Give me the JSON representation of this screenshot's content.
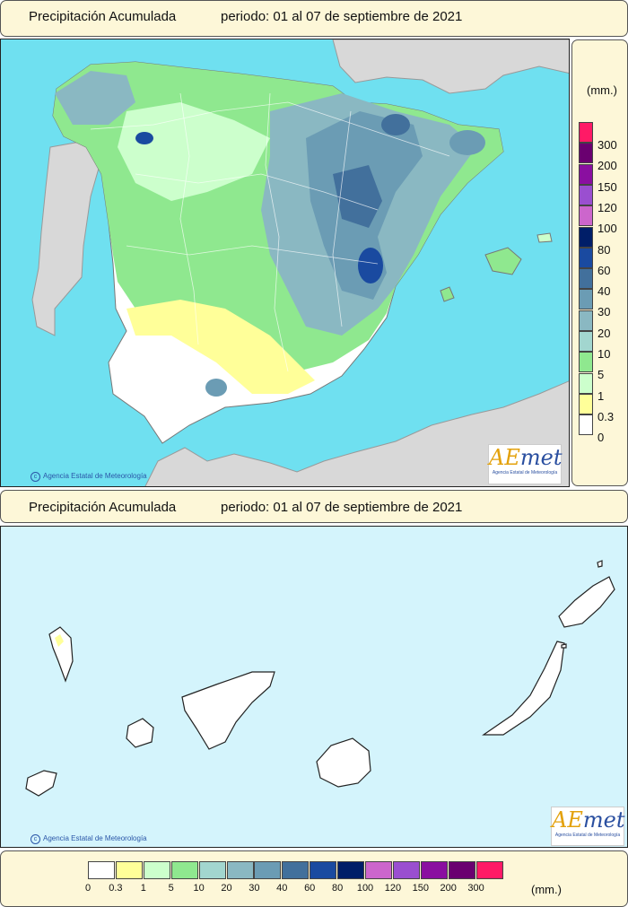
{
  "top_panel": {
    "title": "Precipitación Acumulada",
    "period": "periodo: 01 al 07 de septiembre de 2021",
    "credit": "Agencia Estatal de Meteorología"
  },
  "bottom_panel": {
    "title": "Precipitación Acumulada",
    "period": "periodo: 01 al 07 de septiembre de 2021",
    "credit": "Agencia Estatal de Meteorología"
  },
  "logo": {
    "brand_a": "AE",
    "brand_b": "met",
    "subtitle": "Agencia Estatal de Meteorología"
  },
  "legend": {
    "unit": "(mm.)",
    "classes": [
      {
        "label": "0",
        "color": "#ffffff"
      },
      {
        "label": "0.3",
        "color": "#ffff99"
      },
      {
        "label": "1",
        "color": "#ccffcc"
      },
      {
        "label": "5",
        "color": "#8fe88f"
      },
      {
        "label": "10",
        "color": "#a2d6cf"
      },
      {
        "label": "20",
        "color": "#8ab8c2"
      },
      {
        "label": "30",
        "color": "#6b9cb4"
      },
      {
        "label": "40",
        "color": "#42709c"
      },
      {
        "label": "60",
        "color": "#1a4aa0"
      },
      {
        "label": "80",
        "color": "#001e68"
      },
      {
        "label": "100",
        "color": "#cc66cc"
      },
      {
        "label": "120",
        "color": "#9a4fd0"
      },
      {
        "label": "150",
        "color": "#8a0fa0"
      },
      {
        "label": "200",
        "color": "#6a0070"
      },
      {
        "label": "300",
        "color": "#ff1a66"
      }
    ]
  },
  "colors": {
    "sea": "#6fe0f0",
    "land_outside": "#d8d8d8",
    "canary_sea": "#d4f4fc"
  }
}
